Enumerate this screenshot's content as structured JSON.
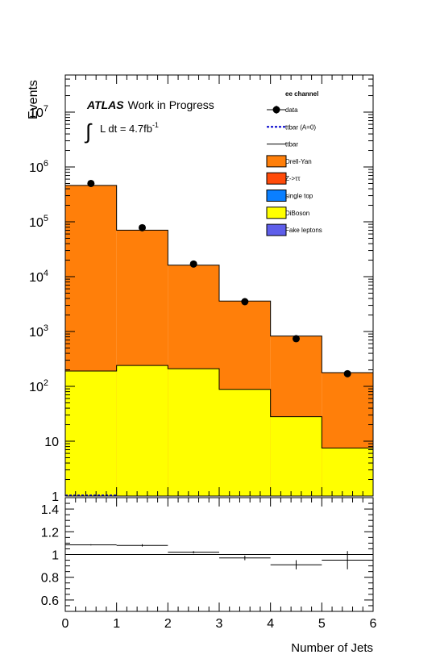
{
  "chart_data": [
    {
      "type": "bar",
      "ylabel": "Events",
      "ylog": true,
      "ylim": [
        1,
        50000000
      ],
      "xlim": [
        0,
        6
      ],
      "y_tick_labels": [
        {
          "value": 10000000,
          "base": "10",
          "exp": "7"
        },
        {
          "value": 1000000,
          "base": "10",
          "exp": "6"
        },
        {
          "value": 100000,
          "base": "10",
          "exp": "5"
        },
        {
          "value": 10000,
          "base": "10",
          "exp": "4"
        },
        {
          "value": 1000,
          "base": "10",
          "exp": "3"
        },
        {
          "value": 100,
          "base": "10",
          "exp": "2"
        },
        {
          "value": 10,
          "base": "10",
          "exp": ""
        },
        {
          "value": 1,
          "base": "1",
          "exp": ""
        }
      ],
      "atlas_label": {
        "bold": "ATLAS",
        "rest": "Work in Progress"
      },
      "lumi_label": {
        "integral": "∫",
        "text": "L dt = 4.7fb",
        "exp": "-1"
      },
      "channel_label": "ee channel",
      "legend": [
        {
          "label": "data",
          "style": "marker",
          "color": "#000000"
        },
        {
          "label": "ttbar (A=0)",
          "style": "dashed-line",
          "color": "#0000cc"
        },
        {
          "label": "ttbar",
          "style": "line",
          "color": "#000000"
        },
        {
          "label": "Drell-Yan",
          "style": "box",
          "color": "#ff7f0a"
        },
        {
          "label": "Z->ττ",
          "style": "box",
          "color": "#ff4b0a"
        },
        {
          "label": "single top",
          "style": "box",
          "color": "#0a7fff"
        },
        {
          "label": "DiBoson",
          "style": "box",
          "color": "#ffff00"
        },
        {
          "label": "Fake leptons",
          "style": "box",
          "color": "#5e5eea"
        }
      ],
      "bin_edges": [
        0,
        1,
        2,
        3,
        4,
        5,
        6
      ],
      "series": [
        {
          "name": "DiBoson",
          "values": [
            190,
            240,
            210,
            88,
            28,
            7.5
          ]
        },
        {
          "name": "Drell-Yan",
          "values": [
            460000,
            70000,
            16000,
            3500,
            800,
            170
          ]
        },
        {
          "name": "data",
          "x": [
            0.5,
            1.5,
            2.5,
            3.5,
            4.5,
            5.5
          ],
          "values": [
            500000,
            78000,
            17000,
            3500,
            740,
            170
          ]
        }
      ]
    },
    {
      "type": "line",
      "xlabel": "Number of Jets",
      "xlim": [
        0,
        6
      ],
      "ylim": [
        0.5,
        1.5
      ],
      "y_tick_labels": [
        "0.6",
        "0.8",
        "1",
        "1.2",
        "1.4"
      ],
      "x_tick_labels": [
        "0",
        "1",
        "2",
        "3",
        "4",
        "5",
        "6"
      ],
      "reference_line": 1,
      "series": [
        {
          "name": "ratio",
          "x": [
            0.5,
            1.5,
            2.5,
            3.5,
            4.5,
            5.5
          ],
          "values": [
            1.085,
            1.08,
            1.02,
            0.97,
            0.91,
            0.95
          ],
          "errors": [
            0.005,
            0.01,
            0.01,
            0.02,
            0.04,
            0.08
          ]
        }
      ]
    }
  ]
}
